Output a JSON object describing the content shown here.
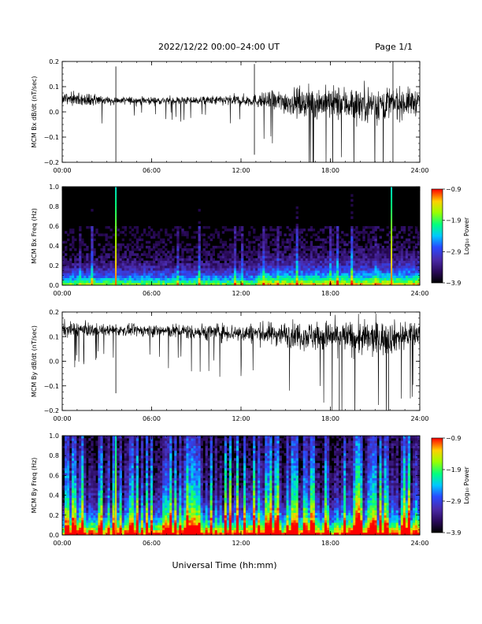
{
  "header": {
    "title": "2022/12/22  00:00–24:00 UT",
    "page": "Page 1/1"
  },
  "x_axis_title": "Universal Time (hh:mm)",
  "colors": {
    "trace": "#000000",
    "spectrogram_background": "#000000"
  },
  "chart_data": [
    {
      "type": "line",
      "ylabel": "MCM Bx dB/dt (nT/sec)",
      "x_ticks": [
        "00:00",
        "06:00",
        "12:00",
        "18:00",
        "24:00"
      ],
      "xlim": [
        0,
        24
      ],
      "y_ticks": [
        "0.2",
        "0.1",
        "0.0",
        "−0.1",
        "−0.2"
      ],
      "ylim": [
        -0.2,
        0.2
      ],
      "series": [
        {
          "x": [
            0,
            3.5,
            6,
            9,
            12.9,
            15,
            18,
            21,
            24
          ],
          "values": [
            0.05,
            0.045,
            0.045,
            0.045,
            0.045,
            0.04,
            0.035,
            0.03,
            0.04
          ],
          "band": [
            0.035,
            0.02,
            0.018,
            0.02,
            0.03,
            0.06,
            0.08,
            0.09,
            0.06
          ]
        }
      ],
      "spikes": [
        {
          "x": 3.6,
          "low": -0.2,
          "high": 0.18
        },
        {
          "x": 12.9,
          "low": -0.17,
          "high": 0.19
        },
        {
          "x": 22.2,
          "low": -0.2,
          "high": 0.2
        }
      ]
    },
    {
      "type": "heatmap",
      "ylabel": "MCM Bx Freq (Hz)",
      "x_ticks": [
        "00:00",
        "06:00",
        "12:00",
        "18:00",
        "24:00"
      ],
      "xlim": [
        0,
        24
      ],
      "y_ticks": [
        "1.0",
        "0.8",
        "0.6",
        "0.4",
        "0.2",
        "0.0"
      ],
      "ylim": [
        0,
        1
      ],
      "colorbar": {
        "label": "Log₁₀ Power",
        "ticks": [
          "−0.9",
          "−1.9",
          "−2.9",
          "−3.9"
        ],
        "range": [
          -3.9,
          -0.9
        ]
      },
      "bright_lines": [
        3.6,
        22.1
      ]
    },
    {
      "type": "line",
      "ylabel": "MCM By dB/dt (nT/sec)",
      "x_ticks": [
        "00:00",
        "06:00",
        "12:00",
        "18:00",
        "24:00"
      ],
      "xlim": [
        0,
        24
      ],
      "y_ticks": [
        "0.2",
        "0.1",
        "0.0",
        "−0.1",
        "−0.2"
      ],
      "ylim": [
        -0.2,
        0.2
      ],
      "series": [
        {
          "x": [
            0,
            3.5,
            6,
            9,
            12,
            15,
            18,
            21,
            24
          ],
          "values": [
            0.13,
            0.125,
            0.125,
            0.12,
            0.115,
            0.11,
            0.1,
            0.09,
            0.11
          ],
          "band": [
            0.04,
            0.025,
            0.03,
            0.04,
            0.045,
            0.06,
            0.08,
            0.09,
            0.06
          ]
        }
      ],
      "spikes": [
        {
          "x": 3.6,
          "low": -0.13,
          "high": 0.15
        },
        {
          "x": 18.6,
          "low": -0.2,
          "high": 0.12
        },
        {
          "x": 21.9,
          "low": -0.2,
          "high": 0.12
        }
      ]
    },
    {
      "type": "heatmap",
      "ylabel": "MCM By Freq (Hz)",
      "x_ticks": [
        "00:00",
        "06:00",
        "12:00",
        "18:00",
        "24:00"
      ],
      "xlim": [
        0,
        24
      ],
      "y_ticks": [
        "1.0",
        "0.8",
        "0.6",
        "0.4",
        "0.2",
        "0.0"
      ],
      "ylim": [
        0,
        1
      ],
      "colorbar": {
        "label": "Log₁₀ Power",
        "ticks": [
          "−0.9",
          "−1.9",
          "−2.9",
          "−3.9"
        ],
        "range": [
          -3.9,
          -0.9
        ]
      },
      "bright_lines": [
        3.6
      ]
    }
  ]
}
